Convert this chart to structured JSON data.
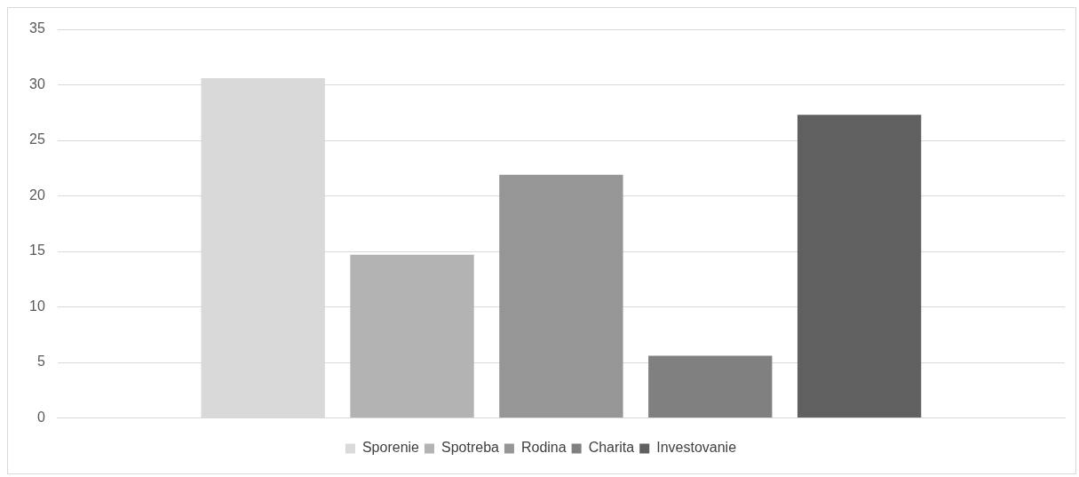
{
  "chart_data": {
    "type": "bar",
    "categories": [
      null
    ],
    "series": [
      {
        "name": "Sporenie",
        "color": "#d9d9d9",
        "values": [
          30.6
        ]
      },
      {
        "name": "Spotreba",
        "color": "#b3b3b3",
        "values": [
          14.7
        ]
      },
      {
        "name": "Rodina",
        "color": "#969696",
        "values": [
          21.9
        ]
      },
      {
        "name": "Charita",
        "color": "#808080",
        "values": [
          5.6
        ]
      },
      {
        "name": "Investovanie",
        "color": "#606060",
        "values": [
          27.3
        ]
      }
    ],
    "ylim": [
      0,
      35
    ],
    "yticks": [
      0,
      5,
      10,
      15,
      20,
      25,
      30,
      35
    ],
    "grid": "y",
    "legend": "bottom"
  }
}
